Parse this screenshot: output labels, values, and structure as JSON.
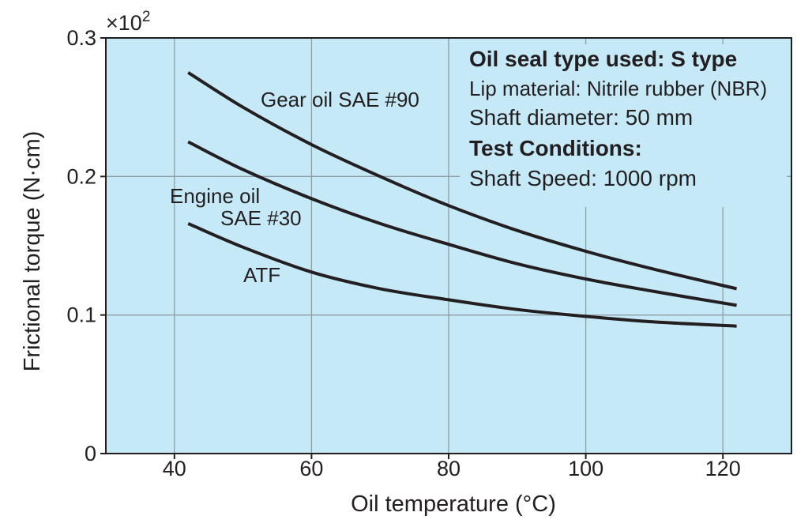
{
  "chart_data": {
    "type": "line",
    "title": "",
    "xlabel": "Oil temperature (°C)",
    "ylabel": "Frictional torque (N·cm)",
    "y_scale_note": "×10",
    "y_scale_exponent": "2",
    "xlim": [
      30,
      130
    ],
    "ylim": [
      0,
      0.3
    ],
    "x_ticks": [
      40,
      60,
      80,
      100,
      120
    ],
    "x_tick_labels": [
      "40",
      "60",
      "80",
      "100",
      "120"
    ],
    "y_ticks": [
      0,
      0.1,
      0.2,
      0.3
    ],
    "y_tick_labels": [
      "0",
      "0.1",
      "0.2",
      "0.3"
    ],
    "grid": true,
    "plot_background": "#c6e9f8",
    "line_color": "#231f20",
    "series": [
      {
        "name": "Gear oil SAE #90",
        "x": [
          42,
          50,
          60,
          70,
          80,
          90,
          100,
          110,
          122
        ],
        "y": [
          0.275,
          0.25,
          0.223,
          0.2,
          0.179,
          0.161,
          0.146,
          0.133,
          0.119
        ]
      },
      {
        "name": "Engine oil SAE #30",
        "label_lines": [
          "Engine oil",
          "SAE #30"
        ],
        "x": [
          42,
          50,
          60,
          70,
          80,
          90,
          100,
          110,
          122
        ],
        "y": [
          0.225,
          0.205,
          0.184,
          0.166,
          0.151,
          0.137,
          0.126,
          0.117,
          0.107
        ]
      },
      {
        "name": "ATF",
        "x": [
          42,
          50,
          60,
          70,
          80,
          90,
          100,
          110,
          122
        ],
        "y": [
          0.166,
          0.149,
          0.131,
          0.119,
          0.111,
          0.104,
          0.099,
          0.095,
          0.092
        ]
      }
    ],
    "annotations": [
      {
        "text": "Oil seal type used: S type",
        "style": "bold"
      },
      {
        "text": "Lip material: Nitrile rubber (NBR)",
        "style": "small"
      },
      {
        "text": "Shaft diameter: 50 mm",
        "style": "regular"
      },
      {
        "text": "Test Conditions:",
        "style": "bold"
      },
      {
        "text": "Shaft Speed: 1000 rpm",
        "style": "regular"
      }
    ]
  }
}
